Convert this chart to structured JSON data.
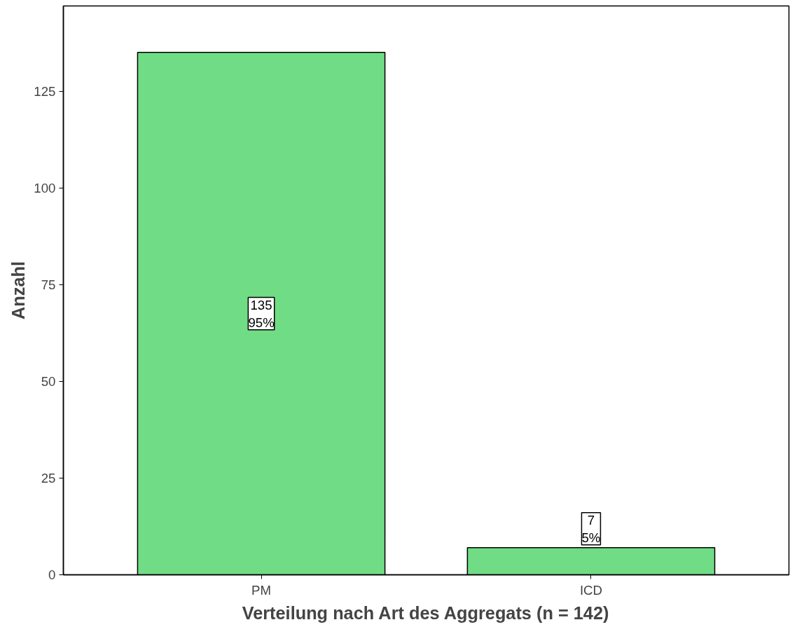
{
  "chart_data": {
    "type": "bar",
    "xlabel": "Verteilung nach Art des Aggregats (n = 142)",
    "ylabel": "Anzahl",
    "categories": [
      "PM",
      "ICD"
    ],
    "values": [
      135,
      7
    ],
    "color": "#70dc85",
    "value_labels": [
      "135\n95%",
      "7\n5%"
    ],
    "ylim": [
      0,
      147
    ],
    "yticks": [
      0,
      25,
      50,
      75,
      100,
      125
    ],
    "grid": false
  }
}
